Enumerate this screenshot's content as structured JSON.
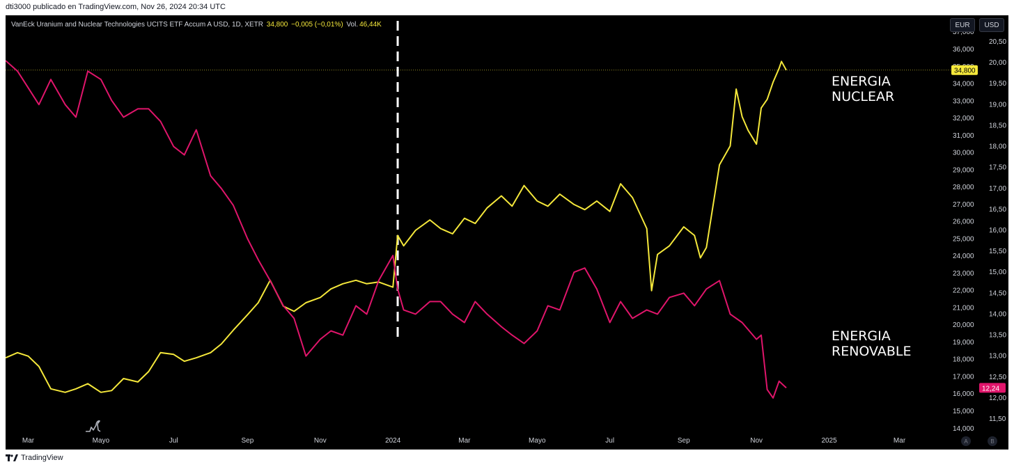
{
  "attribution": "dti3000 publicado en TradingView.com, Nov 26, 2024 20:34 UTC",
  "legend": {
    "symbol": "VanEck Uranium and Nuclear Technologies UCITS ETF Accum A USD, 1D, XETR",
    "last": "34,800",
    "change": "−0,005 (−0,01%)",
    "vol_label": "Vol.",
    "vol_value": "46,44K"
  },
  "currency_buttons": [
    "EUR",
    "USD"
  ],
  "labels": {
    "nuclear_line1": "ENERGIA",
    "nuclear_line2": "NUCLEAR",
    "renewable_line1": "ENERGIA",
    "renewable_line2": "RENOVABLE"
  },
  "scale_buttons": [
    "A",
    "B"
  ],
  "footer_brand": "TradingView",
  "icons": {
    "footer_logo": "tradingview-logo-icon",
    "chart_logo": "tradingview-watermark-icon"
  },
  "colors": {
    "nuclear": "#f5e83b",
    "renewable": "#e0156b",
    "background": "#000000",
    "vertical_marker": "#ffffff"
  },
  "chart_data": {
    "type": "line",
    "x_tick_labels": [
      "Mar",
      "Mayo",
      "Jul",
      "Sep",
      "Nov",
      "2024",
      "Mar",
      "Mayo",
      "Jul",
      "Sep",
      "Nov",
      "2025",
      "Mar"
    ],
    "x_tick_dates": [
      "2023-03-01",
      "2023-05-01",
      "2023-07-01",
      "2023-09-01",
      "2023-11-01",
      "2024-01-01",
      "2024-03-01",
      "2024-05-01",
      "2024-07-01",
      "2024-09-01",
      "2024-11-01",
      "2025-01-01",
      "2025-03-01"
    ],
    "xlim": [
      "2023-02-10",
      "2025-04-10"
    ],
    "y_left_ticks": [
      "37,000",
      "36,000",
      "35,000",
      "34,000",
      "33,000",
      "32,000",
      "31,000",
      "30,000",
      "29,000",
      "28,000",
      "27,000",
      "26,000",
      "25,000",
      "24,000",
      "23,000",
      "22,000",
      "21,000",
      "20,000",
      "19,000",
      "18,000",
      "17,000",
      "16,000",
      "15,000",
      "14,000"
    ],
    "y_right_ticks": [
      "20,50",
      "20,00",
      "19,50",
      "19,00",
      "18,50",
      "18,00",
      "17,50",
      "17,00",
      "16,50",
      "16,00",
      "15,50",
      "15,00",
      "14,50",
      "14,00",
      "13,50",
      "13,00",
      "12,50",
      "12,00",
      "11,50"
    ],
    "ylim_left": [
      14.0,
      37.0
    ],
    "ylim_right": [
      11.5,
      20.5
    ],
    "price_tags": [
      {
        "value": 34.8,
        "label": "34,800",
        "axis": "left",
        "color": "#f5e83b"
      },
      {
        "value": 12.24,
        "label": "12,24",
        "axis": "right",
        "color": "#e0156b"
      }
    ],
    "vertical_marker_date": "2024-01-05",
    "grid": false,
    "series": [
      {
        "axis": "left",
        "color": "#f5e83b",
        "x": [
          "2023-02-10",
          "2023-02-20",
          "2023-03-01",
          "2023-03-10",
          "2023-03-20",
          "2023-04-01",
          "2023-04-10",
          "2023-04-20",
          "2023-05-01",
          "2023-05-10",
          "2023-05-20",
          "2023-06-01",
          "2023-06-10",
          "2023-06-20",
          "2023-07-01",
          "2023-07-10",
          "2023-07-20",
          "2023-08-01",
          "2023-08-10",
          "2023-08-20",
          "2023-09-01",
          "2023-09-10",
          "2023-09-20",
          "2023-10-01",
          "2023-10-10",
          "2023-10-20",
          "2023-11-01",
          "2023-11-10",
          "2023-11-20",
          "2023-12-01",
          "2023-12-10",
          "2023-12-20",
          "2024-01-01",
          "2024-01-05",
          "2024-01-10",
          "2024-01-20",
          "2024-02-01",
          "2024-02-10",
          "2024-02-20",
          "2024-03-01",
          "2024-03-10",
          "2024-03-20",
          "2024-04-01",
          "2024-04-10",
          "2024-04-20",
          "2024-05-01",
          "2024-05-10",
          "2024-05-20",
          "2024-06-01",
          "2024-06-10",
          "2024-06-20",
          "2024-07-01",
          "2024-07-10",
          "2024-07-20",
          "2024-08-01",
          "2024-08-05",
          "2024-08-10",
          "2024-08-20",
          "2024-09-01",
          "2024-09-10",
          "2024-09-15",
          "2024-09-20",
          "2024-10-01",
          "2024-10-10",
          "2024-10-15",
          "2024-10-20",
          "2024-10-25",
          "2024-11-01",
          "2024-11-05",
          "2024-11-10",
          "2024-11-15",
          "2024-11-20",
          "2024-11-22",
          "2024-11-26"
        ],
        "y": [
          18.1,
          18.4,
          18.2,
          17.6,
          16.3,
          16.1,
          16.3,
          16.6,
          16.1,
          16.2,
          16.9,
          16.7,
          17.3,
          18.4,
          18.3,
          17.9,
          18.1,
          18.4,
          18.9,
          19.7,
          20.6,
          21.3,
          22.6,
          21.1,
          20.8,
          21.3,
          21.6,
          22.1,
          22.4,
          22.6,
          22.4,
          22.5,
          22.2,
          25.2,
          24.6,
          25.5,
          26.1,
          25.6,
          25.3,
          26.2,
          25.9,
          26.8,
          27.5,
          26.9,
          28.1,
          27.2,
          26.9,
          27.6,
          27.0,
          26.7,
          27.2,
          26.6,
          28.2,
          27.4,
          25.6,
          22.0,
          24.1,
          24.6,
          25.7,
          25.2,
          23.9,
          24.5,
          29.3,
          30.4,
          33.7,
          32.1,
          31.3,
          30.5,
          32.6,
          33.1,
          34.1,
          34.9,
          35.3,
          34.8
        ]
      },
      {
        "axis": "right",
        "color": "#e0156b",
        "x": [
          "2023-02-10",
          "2023-02-20",
          "2023-03-01",
          "2023-03-10",
          "2023-03-20",
          "2023-04-01",
          "2023-04-10",
          "2023-04-20",
          "2023-05-01",
          "2023-05-10",
          "2023-05-20",
          "2023-06-01",
          "2023-06-10",
          "2023-06-20",
          "2023-07-01",
          "2023-07-10",
          "2023-07-20",
          "2023-08-01",
          "2023-08-10",
          "2023-08-20",
          "2023-09-01",
          "2023-09-10",
          "2023-09-20",
          "2023-10-01",
          "2023-10-10",
          "2023-10-20",
          "2023-11-01",
          "2023-11-10",
          "2023-11-20",
          "2023-12-01",
          "2023-12-10",
          "2023-12-20",
          "2024-01-01",
          "2024-01-05",
          "2024-01-10",
          "2024-01-20",
          "2024-02-01",
          "2024-02-10",
          "2024-02-20",
          "2024-03-01",
          "2024-03-10",
          "2024-03-20",
          "2024-04-01",
          "2024-04-10",
          "2024-04-20",
          "2024-05-01",
          "2024-05-10",
          "2024-05-20",
          "2024-06-01",
          "2024-06-10",
          "2024-06-20",
          "2024-07-01",
          "2024-07-10",
          "2024-07-20",
          "2024-08-01",
          "2024-08-10",
          "2024-08-20",
          "2024-09-01",
          "2024-09-10",
          "2024-09-20",
          "2024-10-01",
          "2024-10-10",
          "2024-10-20",
          "2024-11-01",
          "2024-11-05",
          "2024-11-10",
          "2024-11-15",
          "2024-11-20",
          "2024-11-26"
        ],
        "y": [
          20.05,
          19.8,
          19.4,
          19.0,
          19.6,
          19.0,
          18.7,
          19.8,
          19.6,
          19.1,
          18.7,
          18.9,
          18.9,
          18.6,
          18.0,
          17.8,
          18.4,
          17.3,
          17.0,
          16.6,
          15.8,
          15.3,
          14.8,
          14.2,
          13.9,
          13.0,
          13.4,
          13.6,
          13.5,
          14.2,
          14.0,
          14.8,
          15.4,
          14.6,
          14.1,
          14.0,
          14.3,
          14.3,
          14.0,
          13.8,
          14.3,
          14.0,
          13.7,
          13.5,
          13.3,
          13.6,
          14.2,
          14.1,
          15.0,
          15.1,
          14.6,
          13.8,
          14.3,
          13.9,
          14.1,
          14.0,
          14.4,
          14.5,
          14.2,
          14.6,
          14.8,
          14.0,
          13.8,
          13.4,
          13.5,
          12.2,
          12.0,
          12.4,
          12.24
        ]
      }
    ]
  }
}
